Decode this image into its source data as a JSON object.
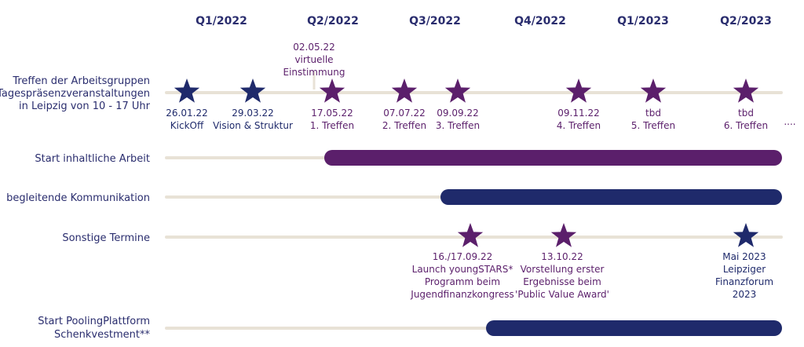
{
  "quarters": [
    "Q1/2022",
    "Q2/2022",
    "Q3/2022",
    "Q4/2022",
    "Q1/2023",
    "Q2/2023"
  ],
  "colors": {
    "navy": "#1f2a6b",
    "purple": "#5b1f6b",
    "track": "#e8e2d6",
    "heading": "#2a2d6e"
  },
  "rows": [
    {
      "label": [
        "Treffen der Arbeitsgruppen",
        "Tagespräsenzveranstaltungen",
        "in Leipzig von 10 - 17 Uhr"
      ],
      "continuation": "....",
      "events": [
        {
          "lines": [
            "26.01.22",
            "KickOff"
          ],
          "color": "navy"
        },
        {
          "lines": [
            "29.03.22",
            "Vision & Struktur"
          ],
          "color": "navy"
        },
        {
          "lines": [
            "17.05.22",
            "1. Treffen"
          ],
          "color": "purple"
        },
        {
          "lines": [
            "07.07.22",
            "2. Treffen"
          ],
          "color": "purple"
        },
        {
          "lines": [
            "09.09.22",
            "3. Treffen"
          ],
          "color": "purple"
        },
        {
          "lines": [
            "09.11.22",
            "4. Treffen"
          ],
          "color": "purple"
        },
        {
          "lines": [
            "tbd",
            "5. Treffen"
          ],
          "color": "purple"
        },
        {
          "lines": [
            "tbd",
            "6. Treffen"
          ],
          "color": "purple"
        }
      ],
      "note": {
        "lines": [
          "02.05.22",
          "virtuelle",
          "Einstimmung"
        ]
      }
    },
    {
      "label": [
        "Start inhaltliche Arbeit"
      ],
      "bar": {
        "start": "Q2/2022",
        "end": "Q2/2023",
        "color": "purple"
      }
    },
    {
      "label": [
        "begleitende Kommunikation"
      ],
      "bar": {
        "start": "Q3/2022",
        "end": "Q2/2023",
        "color": "navy"
      }
    },
    {
      "label": [
        "Sonstige Termine"
      ],
      "events": [
        {
          "lines": [
            "16./17.09.22",
            "Launch youngSTARS*",
            "Programm beim",
            "Jugendfinanzkongress"
          ],
          "color": "purple"
        },
        {
          "lines": [
            "13.10.22",
            "Vorstellung erster",
            "Ergebnisse beim",
            "'Public Value Award'"
          ],
          "color": "purple"
        },
        {
          "lines": [
            "Mai 2023",
            "Leipziger",
            "Finanzforum",
            "2023"
          ],
          "color": "navy"
        }
      ]
    },
    {
      "label": [
        "Start PoolingPlattform",
        "Schenkvestment**"
      ],
      "bar": {
        "start": "Q3/2022",
        "end": "Q2/2023",
        "color": "navy"
      }
    }
  ]
}
